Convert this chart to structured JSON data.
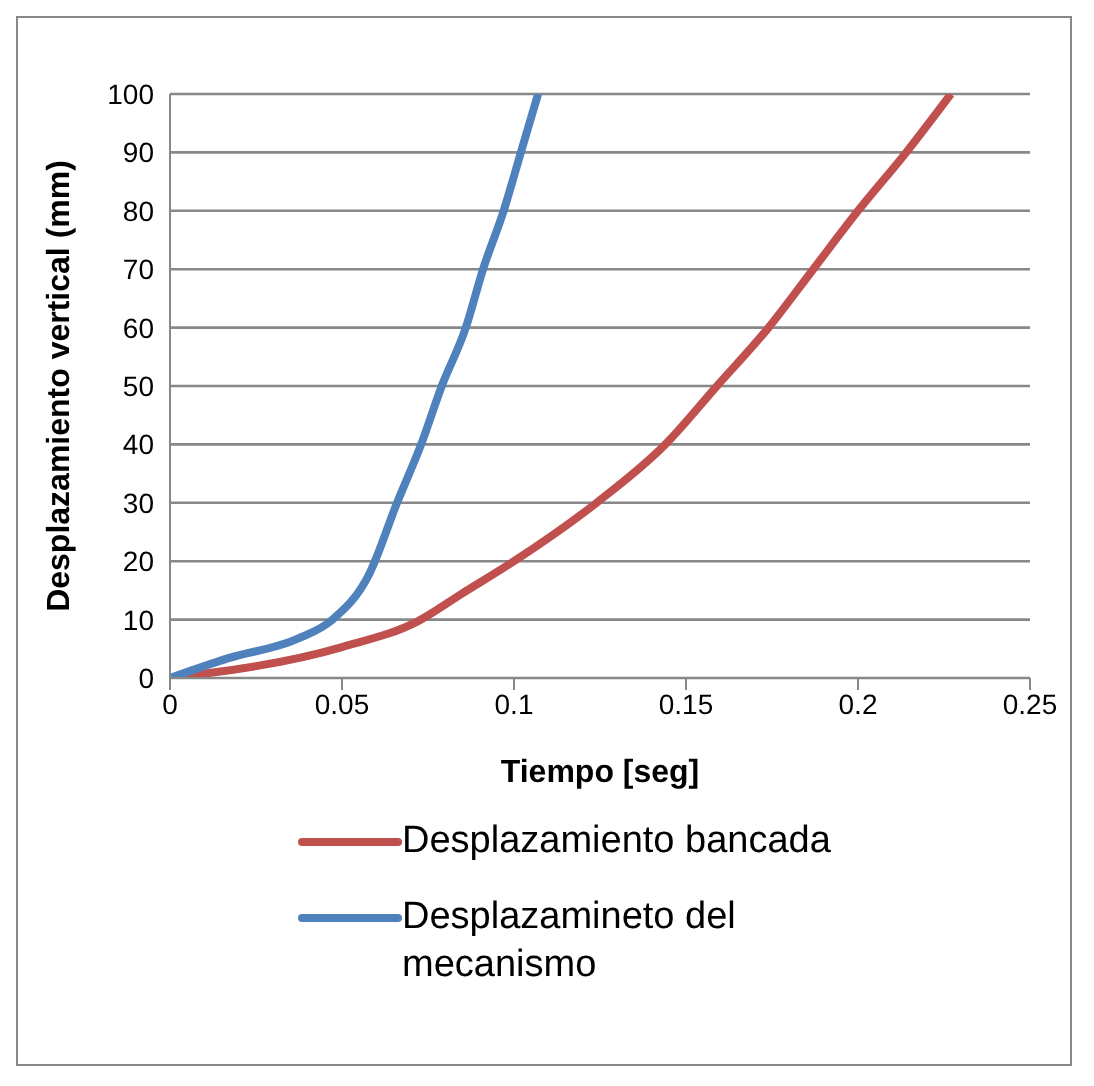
{
  "chart_data": {
    "type": "line",
    "xlabel": "Tiempo [seg]",
    "ylabel": "Desplazamiento vertical (mm)",
    "xlim": [
      0,
      0.25
    ],
    "xticks": [
      0,
      0.05,
      0.1,
      0.15,
      0.2,
      0.25
    ],
    "ylim": [
      0,
      100
    ],
    "yticks": [
      0,
      10,
      20,
      30,
      40,
      50,
      60,
      70,
      80,
      90,
      100
    ],
    "grid": "y",
    "legend": "bottom",
    "marker": "none",
    "line_style": "solid",
    "series": [
      {
        "name": "Desplazamiento bancada",
        "color": "#c0504d",
        "x": [
          0,
          0.05,
          0.072,
          0.085,
          0.1,
          0.124,
          0.144,
          0.159,
          0.174,
          0.187,
          0.2,
          0.214,
          0.227
        ],
        "values": [
          0,
          5.3,
          9.7,
          14.5,
          20,
          30,
          40,
          50,
          60,
          70,
          80,
          90,
          100
        ]
      },
      {
        "name": "Desplazamineto del mecanismo",
        "color": "#4f81bd",
        "x": [
          0,
          0.017,
          0.037,
          0.047,
          0.058,
          0.066,
          0.073,
          0.079,
          0.086,
          0.091,
          0.097,
          0.102,
          0.107
        ],
        "values": [
          0,
          3.4,
          6.7,
          9.9,
          17.9,
          30,
          40,
          50,
          60,
          70,
          80,
          90,
          100
        ]
      }
    ]
  }
}
